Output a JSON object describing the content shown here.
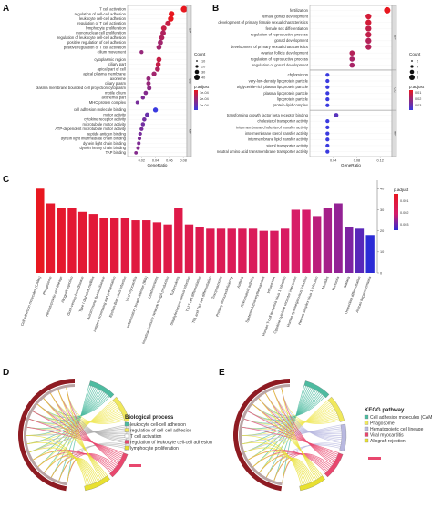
{
  "panels": {
    "a": "A",
    "b": "B",
    "c": "C",
    "d": "D",
    "e": "E"
  },
  "colors": {
    "bar_high": "#e8171f",
    "bar_low": "#2b2bd6",
    "dot_high": "#e8171f",
    "dot_low": "#3a3adf"
  },
  "chart_data": [
    {
      "type": "scatter",
      "panel": "A",
      "xlabel": "GeneRatio",
      "x_ticks": [
        "0.02",
        "0.04",
        "0.06",
        "0.08"
      ],
      "xlim": [
        0.0,
        0.085
      ],
      "legend": {
        "size_title": "Count",
        "size_values": [
          "10",
          "20",
          "30",
          "40"
        ],
        "color_title": "p.adjust",
        "color_values": [
          "1e-04",
          "2e-04",
          "3e-04"
        ]
      },
      "groups": [
        {
          "name": "BP",
          "terms": [
            {
              "label": "T cell activation",
              "x": 0.081,
              "count": 42,
              "p": 1e-05
            },
            {
              "label": "regulation of cell-cell adhesion",
              "x": 0.063,
              "count": 32,
              "p": 1e-05
            },
            {
              "label": "leukocyte cell-cell adhesion",
              "x": 0.062,
              "count": 31,
              "p": 1e-05
            },
            {
              "label": "regulation of T cell activation",
              "x": 0.058,
              "count": 29,
              "p": 2e-05
            },
            {
              "label": "lymphocyte proliferation",
              "x": 0.052,
              "count": 27,
              "p": 2e-05
            },
            {
              "label": "mononuclear cell proliferation",
              "x": 0.051,
              "count": 26,
              "p": 3e-05
            },
            {
              "label": "regulation of leukocyte cell-cell adhesion",
              "x": 0.049,
              "count": 25,
              "p": 3e-05
            },
            {
              "label": "positive regulation of cell adhesion",
              "x": 0.047,
              "count": 24,
              "p": 4e-05
            },
            {
              "label": "positive regulation of T cell activation",
              "x": 0.045,
              "count": 23,
              "p": 4e-05
            },
            {
              "label": "cilium movement",
              "x": 0.02,
              "count": 10,
              "p": 5e-05
            }
          ]
        },
        {
          "name": "CC",
          "terms": [
            {
              "label": "cytoplasmic region",
              "x": 0.045,
              "count": 23,
              "p": 2e-05
            },
            {
              "label": "ciliary part",
              "x": 0.044,
              "count": 22,
              "p": 2e-05
            },
            {
              "label": "apical part of cell",
              "x": 0.043,
              "count": 22,
              "p": 3e-05
            },
            {
              "label": "apical plasma membrane",
              "x": 0.038,
              "count": 19,
              "p": 4e-05
            },
            {
              "label": "axoneme",
              "x": 0.03,
              "count": 15,
              "p": 5e-05
            },
            {
              "label": "ciliary plasm",
              "x": 0.03,
              "count": 15,
              "p": 5e-05
            },
            {
              "label": "plasma membrane bounded cell projection cytoplasm",
              "x": 0.031,
              "count": 16,
              "p": 6e-05
            },
            {
              "label": "motile cilium",
              "x": 0.026,
              "count": 13,
              "p": 7e-05
            },
            {
              "label": "axonemal part",
              "x": 0.022,
              "count": 11,
              "p": 8e-05
            },
            {
              "label": "MHC protein complex",
              "x": 0.014,
              "count": 7,
              "p": 9e-05
            }
          ]
        },
        {
          "name": "MF",
          "terms": [
            {
              "label": "cell adhesion molecule binding",
              "x": 0.04,
              "count": 20,
              "p": 0.0003
            },
            {
              "label": "motor activity",
              "x": 0.028,
              "count": 14,
              "p": 0.00012
            },
            {
              "label": "cytokine receptor activity",
              "x": 0.024,
              "count": 12,
              "p": 0.0001
            },
            {
              "label": "microtubule motor activity",
              "x": 0.022,
              "count": 11,
              "p": 0.0001
            },
            {
              "label": "ATP-dependent microtubule motor activity",
              "x": 0.02,
              "count": 10,
              "p": 9e-05
            },
            {
              "label": "peptide antigen binding",
              "x": 0.018,
              "count": 9,
              "p": 9e-05
            },
            {
              "label": "dynein light intermediate chain binding",
              "x": 0.017,
              "count": 8,
              "p": 8e-05
            },
            {
              "label": "dynein light chain binding",
              "x": 0.016,
              "count": 8,
              "p": 8e-05
            },
            {
              "label": "dynein heavy chain binding",
              "x": 0.015,
              "count": 7,
              "p": 7e-05
            },
            {
              "label": "TAP binding",
              "x": 0.012,
              "count": 6,
              "p": 7e-05
            }
          ]
        }
      ]
    },
    {
      "type": "scatter",
      "panel": "B",
      "xlabel": "GeneRatio",
      "x_ticks": [
        "0.04",
        "0.08",
        "0.12"
      ],
      "xlim": [
        0.0,
        0.14
      ],
      "legend": {
        "size_title": "Count",
        "size_values": [
          "2",
          "4",
          "6",
          "8"
        ],
        "color_title": "p.adjust",
        "color_values": [
          "0.01",
          "0.02",
          "0.03"
        ]
      },
      "groups": [
        {
          "name": "BP",
          "terms": [
            {
              "label": "fertilization",
              "x": 0.132,
              "count": 9,
              "p": 0.003
            },
            {
              "label": "female gonad development",
              "x": 0.1,
              "count": 7,
              "p": 0.004
            },
            {
              "label": "development of primary female sexual characteristics",
              "x": 0.1,
              "count": 7,
              "p": 0.004
            },
            {
              "label": "female sex differentiation",
              "x": 0.1,
              "count": 7,
              "p": 0.005
            },
            {
              "label": "regulation of reproductive process",
              "x": 0.1,
              "count": 7,
              "p": 0.005
            },
            {
              "label": "gonad development",
              "x": 0.1,
              "count": 7,
              "p": 0.006
            },
            {
              "label": "development of primary sexual characteristics",
              "x": 0.1,
              "count": 7,
              "p": 0.006
            },
            {
              "label": "ovarian follicle development",
              "x": 0.072,
              "count": 5,
              "p": 0.006
            },
            {
              "label": "regulation of reproductive process",
              "x": 0.072,
              "count": 5,
              "p": 0.007
            },
            {
              "label": "regulation of gonad development",
              "x": 0.072,
              "count": 5,
              "p": 0.007
            }
          ]
        },
        {
          "name": "CC",
          "terms": [
            {
              "label": "chylomicron",
              "x": 0.03,
              "count": 2,
              "p": 0.03
            },
            {
              "label": "very-low-density lipoprotein particle",
              "x": 0.03,
              "count": 2,
              "p": 0.03
            },
            {
              "label": "triglyceride-rich plasma lipoprotein particle",
              "x": 0.03,
              "count": 2,
              "p": 0.03
            },
            {
              "label": "plasma lipoprotein particle",
              "x": 0.03,
              "count": 2,
              "p": 0.03
            },
            {
              "label": "lipoprotein particle",
              "x": 0.03,
              "count": 2,
              "p": 0.03
            },
            {
              "label": "protein-lipid complex",
              "x": 0.03,
              "count": 2,
              "p": 0.03
            }
          ]
        },
        {
          "name": "MF",
          "terms": [
            {
              "label": "transforming growth factor beta receptor binding",
              "x": 0.045,
              "count": 3,
              "p": 0.02
            },
            {
              "label": "cholesterol transporter activity",
              "x": 0.03,
              "count": 2,
              "p": 0.03
            },
            {
              "label": "intermembrane cholesterol transfer activity",
              "x": 0.03,
              "count": 2,
              "p": 0.03
            },
            {
              "label": "intermembrane sterol transfer activity",
              "x": 0.03,
              "count": 2,
              "p": 0.03
            },
            {
              "label": "intermembrane lipid transfer activity",
              "x": 0.03,
              "count": 2,
              "p": 0.03
            },
            {
              "label": "sterol transporter activity",
              "x": 0.03,
              "count": 2,
              "p": 0.03
            },
            {
              "label": "neutral amino acid transmembrane transporter activity",
              "x": 0.03,
              "count": 2,
              "p": 0.03
            }
          ]
        }
      ]
    },
    {
      "type": "bar",
      "panel": "C",
      "ylim": [
        0,
        44
      ],
      "y_ticks": [
        "0",
        "10",
        "20",
        "30",
        "40"
      ],
      "legend": {
        "title": "p.adjust",
        "values": [
          "0.001",
          "0.002",
          "0.003"
        ]
      },
      "categories": [
        "Cell adhesion molecules (CAMs)",
        "Phagosome",
        "Hematopoietic cell lineage",
        "Allograft rejection",
        "Graft-versus-host disease",
        "Type I diabetes mellitus",
        "Autoimmune thyroid disease",
        "Antigen processing and presentation",
        "Epstein-Barr virus infection",
        "Viral myocarditis",
        "Inflammatory bowel disease (IBD)",
        "Leishmaniasis",
        "Intestinal immune network for IgA production",
        "Tuberculosis",
        "Staphylococcus aureus infection",
        "Th17 cell differentiation",
        "Th1 and Th2 cell differentiation",
        "Toxoplasmosis",
        "Primary immunodeficiency",
        "Asthma",
        "Rheumatoid arthritis",
        "Systemic lupus erythematosus",
        "Influenza A",
        "Human T-cell leukemia virus 1 infection",
        "Cytokine-cytokine receptor interaction",
        "Human cytomegalovirus infection",
        "Herpes simplex virus 1 infection",
        "Measles",
        "Pertussis",
        "Malaria",
        "Osteoclast differentiation",
        "African trypanosomiasis"
      ],
      "values": [
        40,
        33,
        31,
        31,
        29,
        28,
        26,
        26,
        26,
        25,
        25,
        24,
        23,
        31,
        23,
        22,
        21,
        21,
        21,
        21,
        21,
        20,
        20,
        21,
        30,
        30,
        27,
        31,
        33,
        22,
        21,
        18
      ],
      "padj": [
        1e-05,
        2e-05,
        2e-05,
        3e-05,
        3e-05,
        4e-05,
        4e-05,
        5e-05,
        6e-05,
        6e-05,
        7e-05,
        8e-05,
        9e-05,
        0.0001,
        0.00012,
        0.00014,
        0.00016,
        0.00018,
        0.0002,
        0.00022,
        0.00025,
        0.0003,
        0.00035,
        0.0004,
        0.0005,
        0.0006,
        0.0008,
        0.001,
        0.0012,
        0.0015,
        0.0022,
        0.0035
      ]
    },
    {
      "type": "chord",
      "panel": "D",
      "legend_title": "Biological process",
      "legend": [
        {
          "label": "leukocyte cell-cell adhesion",
          "color": "#4dbba0"
        },
        {
          "label": "regulation of cell-cell adhesion",
          "color": "#f0e85c"
        },
        {
          "label": "T cell activation",
          "color": "#ffffff"
        },
        {
          "label": "regulation of leukocyte cell-cell adhesion",
          "color": "#e8476e"
        },
        {
          "label": "lymphocyte proliferation",
          "color": "#e8e030"
        }
      ]
    },
    {
      "type": "chord",
      "panel": "E",
      "legend_title": "KEGG pathway",
      "legend": [
        {
          "label": "Cell adhesion molecules (CAMs)",
          "color": "#4dbba0"
        },
        {
          "label": "Phagosome",
          "color": "#f0e85c"
        },
        {
          "label": "Hematopoietic cell lineage",
          "color": "#b8b8e0"
        },
        {
          "label": "Viral myocarditis",
          "color": "#e8476e"
        },
        {
          "label": "Allograft rejection",
          "color": "#e8e030"
        }
      ]
    }
  ]
}
